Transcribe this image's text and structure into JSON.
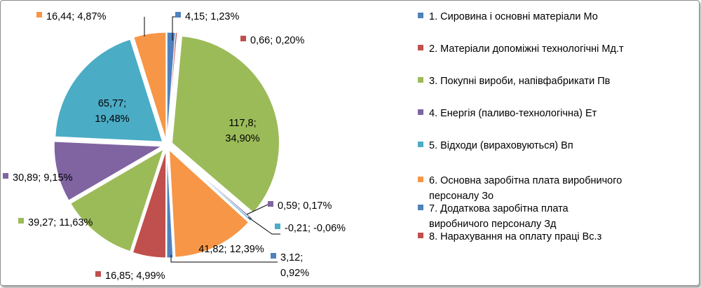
{
  "chart_data": {
    "type": "pie",
    "title": "",
    "slices": [
      {
        "value": 4.15,
        "percent": 1.23,
        "color": "#4f81bd",
        "label_lines": [
          "4,15; 1,23%"
        ],
        "legend_lines": [
          "1. Сировина і основні матеріали Мо"
        ]
      },
      {
        "value": 0.66,
        "percent": 0.2,
        "color": "#c0504d",
        "label_lines": [
          "0,66; 0,20%"
        ],
        "legend_lines": [
          "2. Матеріали допоміжні технологічні Мд.т"
        ]
      },
      {
        "value": 117.8,
        "percent": 34.9,
        "color": "#9bbb59",
        "label_lines": [
          "117,8;",
          "34,90%"
        ],
        "legend_lines": [
          "3. Покупні вироби, напівфабрикати Пв"
        ]
      },
      {
        "value": 0.59,
        "percent": 0.17,
        "color": "#8064a2",
        "label_lines": [
          "0,59; 0,17%"
        ],
        "legend_lines": [
          "4. Енергія (паливо-технологічна) Ет"
        ]
      },
      {
        "value": -0.21,
        "percent": -0.06,
        "color": "#4bacc6",
        "label_lines": [
          "-0,21; -0,06%"
        ],
        "legend_lines": [
          "5. Відходи (вираховуються) Вп"
        ]
      },
      {
        "value": 41.82,
        "percent": 12.39,
        "color": "#f79646",
        "label_lines": [
          "41,82; 12,39%"
        ],
        "legend_lines": [
          "6. Основна заробітна плата виробничого",
          "персоналу Зо"
        ]
      },
      {
        "value": 3.12,
        "percent": 0.92,
        "color": "#4f81bd",
        "label_lines": [
          "3,12;",
          "0,92%"
        ],
        "legend_lines": [
          "7. Додаткова заробітна плата",
          "виробничого персоналу Зд"
        ]
      },
      {
        "value": 16.85,
        "percent": 4.99,
        "color": "#c0504d",
        "label_lines": [
          "16,85; 4,99%"
        ],
        "legend_lines": [
          "8. Нарахування на оплату праці Вс.з"
        ]
      },
      {
        "value": 39.27,
        "percent": 11.63,
        "color": "#9bbb59",
        "label_lines": [
          "39,27; 11,63%"
        ],
        "legend_lines": []
      },
      {
        "value": 30.89,
        "percent": 9.15,
        "color": "#8064a2",
        "label_lines": [
          "30,89; 9,15%"
        ],
        "legend_lines": []
      },
      {
        "value": 65.77,
        "percent": 19.48,
        "color": "#4bacc6",
        "label_lines": [
          "65,77;",
          "19,48%"
        ],
        "legend_lines": []
      },
      {
        "value": 16.44,
        "percent": 4.87,
        "color": "#f79646",
        "label_lines": [
          "16,44; 4,87%"
        ],
        "legend_lines": []
      }
    ],
    "legend_position": "right"
  }
}
